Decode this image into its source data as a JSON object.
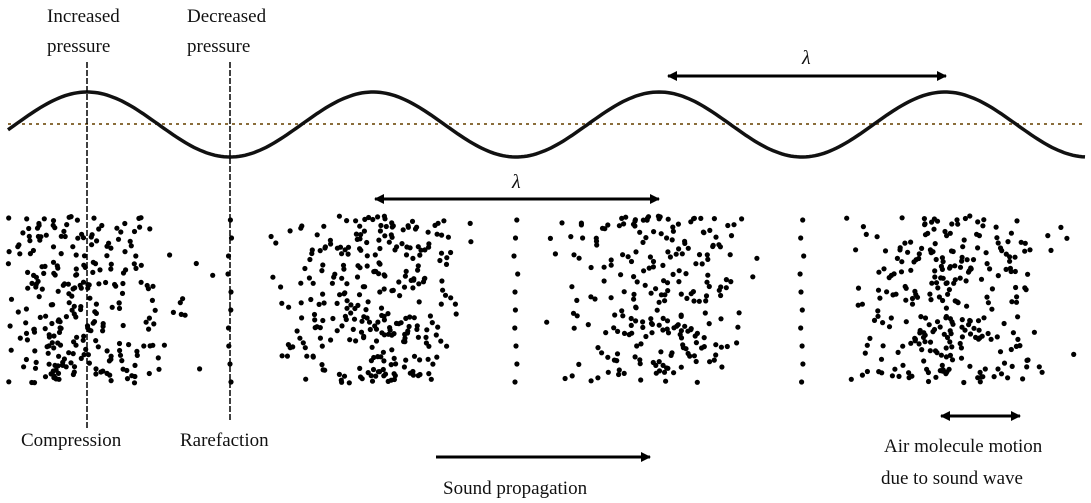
{
  "labels": {
    "increased_pressure": [
      "Increased",
      "pressure"
    ],
    "decreased_pressure": [
      "Decreased",
      "pressure"
    ],
    "wavelength_top": "λ",
    "wavelength_mid": "λ",
    "compression": "Compression",
    "rarefaction": "Rarefaction",
    "sound_propagation": "Sound propagation",
    "air_molecule_motion": [
      "Air molecule motion",
      "due to sound wave"
    ]
  }
}
